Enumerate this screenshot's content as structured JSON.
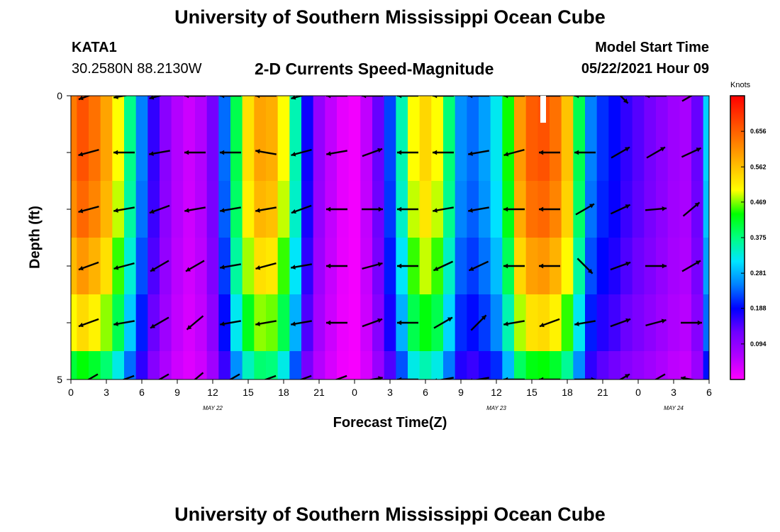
{
  "header": {
    "title": "University of Southern Mississippi Ocean Cube",
    "station": "KATA1",
    "coords": "30.2580N  88.2130W",
    "model_start_label": "Model Start Time",
    "model_start_value": "05/22/2021 Hour 09",
    "footer_title": "University of Southern Mississippi Ocean Cube"
  },
  "colorbar": {
    "unit": "Knots",
    "labels": [
      "0.656",
      "0.562",
      "0.469",
      "0.375",
      "0.281",
      "0.188",
      "0.094"
    ],
    "min": 0.0,
    "max": 0.75,
    "colors": [
      "#ff00ff",
      "#b000ff",
      "#7000ff",
      "#0000ff",
      "#0080ff",
      "#00e5ff",
      "#00ff80",
      "#00ff00",
      "#ffff00",
      "#ffc000",
      "#ff8000",
      "#ff4000",
      "#ff0000"
    ]
  },
  "chart_data": {
    "type": "heatmap",
    "title": "2-D Currents Speed-Magnitude",
    "xlabel": "Forecast Time(Z)",
    "ylabel": "Depth (ft)",
    "x_ticks": [
      "0",
      "3",
      "6",
      "9",
      "12",
      "15",
      "18",
      "21",
      "0",
      "3",
      "6",
      "9",
      "12",
      "15",
      "18",
      "21",
      "0",
      "3",
      "6"
    ],
    "x_hours": [
      0,
      3,
      6,
      9,
      12,
      15,
      18,
      21,
      24,
      27,
      30,
      33,
      36,
      39,
      42,
      45,
      48,
      51,
      54
    ],
    "x_range": [
      0,
      54
    ],
    "date_labels": [
      {
        "label": "MAY 22",
        "hour": 12
      },
      {
        "label": "MAY 23",
        "hour": 36
      },
      {
        "label": "MAY 24",
        "hour": 51
      }
    ],
    "y_ticks": [
      "0",
      "5"
    ],
    "y_range": [
      0,
      5
    ],
    "depth_levels": [
      0,
      1,
      2,
      3,
      4,
      5
    ],
    "speed_profile": [
      {
        "h": 0,
        "v": 0.63
      },
      {
        "h": 1,
        "v": 0.67
      },
      {
        "h": 2,
        "v": 0.64
      },
      {
        "h": 3,
        "v": 0.59
      },
      {
        "h": 4,
        "v": 0.5
      },
      {
        "h": 5,
        "v": 0.37
      },
      {
        "h": 6,
        "v": 0.25
      },
      {
        "h": 7,
        "v": 0.16
      },
      {
        "h": 8,
        "v": 0.1
      },
      {
        "h": 9,
        "v": 0.06
      },
      {
        "h": 10,
        "v": 0.04
      },
      {
        "h": 11,
        "v": 0.06
      },
      {
        "h": 12,
        "v": 0.12
      },
      {
        "h": 13,
        "v": 0.24
      },
      {
        "h": 14,
        "v": 0.4
      },
      {
        "h": 15,
        "v": 0.53
      },
      {
        "h": 16,
        "v": 0.59
      },
      {
        "h": 17,
        "v": 0.58
      },
      {
        "h": 18,
        "v": 0.5
      },
      {
        "h": 19,
        "v": 0.35
      },
      {
        "h": 20,
        "v": 0.18
      },
      {
        "h": 21,
        "v": 0.09
      },
      {
        "h": 22,
        "v": 0.05
      },
      {
        "h": 23,
        "v": 0.02
      },
      {
        "h": 24,
        "v": 0.01
      },
      {
        "h": 25,
        "v": 0.05
      },
      {
        "h": 26,
        "v": 0.13
      },
      {
        "h": 27,
        "v": 0.22
      },
      {
        "h": 28,
        "v": 0.35
      },
      {
        "h": 29,
        "v": 0.5
      },
      {
        "h": 30,
        "v": 0.54
      },
      {
        "h": 31,
        "v": 0.5
      },
      {
        "h": 32,
        "v": 0.38
      },
      {
        "h": 33,
        "v": 0.26
      },
      {
        "h": 34,
        "v": 0.24
      },
      {
        "h": 35,
        "v": 0.27
      },
      {
        "h": 36,
        "v": 0.32
      },
      {
        "h": 37,
        "v": 0.44
      },
      {
        "h": 38,
        "v": 0.6
      },
      {
        "h": 39,
        "v": 0.66
      },
      {
        "h": 40,
        "v": 0.67
      },
      {
        "h": 41,
        "v": 0.64
      },
      {
        "h": 42,
        "v": 0.56
      },
      {
        "h": 43,
        "v": 0.4
      },
      {
        "h": 44,
        "v": 0.25
      },
      {
        "h": 45,
        "v": 0.21
      },
      {
        "h": 46,
        "v": 0.19
      },
      {
        "h": 47,
        "v": 0.16
      },
      {
        "h": 48,
        "v": 0.14
      },
      {
        "h": 49,
        "v": 0.12
      },
      {
        "h": 50,
        "v": 0.1
      },
      {
        "h": 51,
        "v": 0.08
      },
      {
        "h": 52,
        "v": 0.07
      },
      {
        "h": 53,
        "v": 0.13
      },
      {
        "h": 54,
        "v": 0.3
      }
    ],
    "depth_factors": [
      1.0,
      1.0,
      0.97,
      0.9,
      0.8,
      0.65
    ],
    "vector_hours": [
      1.5,
      4.5,
      7.5,
      10.5,
      13.5,
      16.5,
      19.5,
      22.5,
      25.5,
      28.5,
      31.5,
      34.5,
      37.5,
      40.5,
      43.5,
      46.5,
      49.5,
      52.5
    ],
    "vector_depths": [
      0,
      1,
      2,
      3,
      4,
      5
    ],
    "vector_angles_deg": [
      [
        200,
        190,
        195,
        180,
        180,
        180,
        195,
        180,
        180,
        180,
        180,
        180,
        180,
        180,
        180,
        315,
        180,
        30
      ],
      [
        195,
        180,
        190,
        180,
        180,
        170,
        195,
        190,
        20,
        180,
        180,
        190,
        195,
        180,
        180,
        30,
        30,
        25
      ],
      [
        195,
        190,
        200,
        190,
        190,
        190,
        200,
        180,
        0,
        180,
        190,
        190,
        180,
        180,
        30,
        25,
        5,
        40
      ],
      [
        200,
        195,
        210,
        210,
        190,
        195,
        190,
        180,
        15,
        180,
        205,
        205,
        180,
        180,
        315,
        20,
        0,
        30
      ],
      [
        200,
        190,
        210,
        220,
        190,
        190,
        190,
        180,
        20,
        180,
        30,
        45,
        190,
        200,
        190,
        20,
        15,
        0
      ],
      [
        210,
        200,
        210,
        220,
        210,
        200,
        200,
        200,
        10,
        180,
        190,
        190,
        180,
        180,
        0,
        30,
        210,
        170
      ]
    ]
  }
}
